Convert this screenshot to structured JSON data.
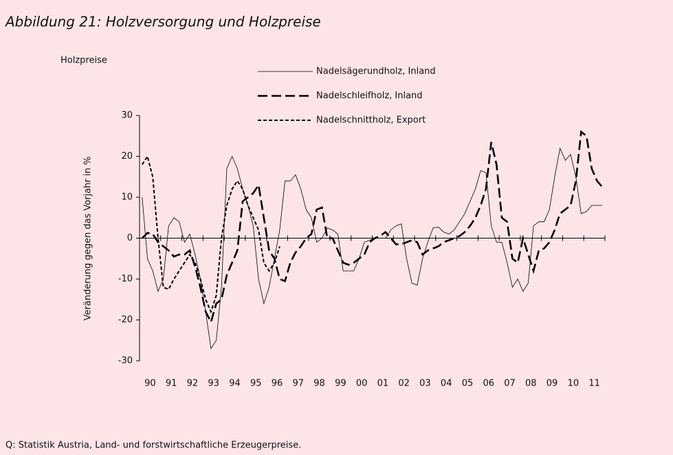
{
  "chart_data": {
    "type": "line",
    "title": "Abbildung 21: Holzversorgung und Holzpreise",
    "subtitle": "Holzpreise",
    "y_label": "Veränderung gegen das Vorjahr in %",
    "source": "Q: Statistik Austria, Land- und forstwirtschaftliche Erzeugerpreise.",
    "categories": [
      null,
      null,
      "90",
      null,
      null,
      null,
      "91",
      null,
      null,
      null,
      "92",
      null,
      null,
      null,
      "93",
      null,
      null,
      null,
      "94",
      null,
      null,
      null,
      "95",
      null,
      null,
      null,
      "96",
      null,
      null,
      null,
      "97",
      null,
      null,
      null,
      "98",
      null,
      null,
      null,
      "99",
      null,
      null,
      null,
      "00",
      null,
      null,
      null,
      "01",
      null,
      null,
      null,
      "02",
      null,
      null,
      null,
      "03",
      null,
      null,
      null,
      "04",
      null,
      null,
      null,
      "05",
      null,
      null,
      null,
      "06",
      null,
      null,
      null,
      "07",
      null,
      null,
      null,
      "08",
      null,
      null,
      null,
      "09",
      null,
      null,
      null,
      "10",
      null,
      null,
      null,
      "11",
      null
    ],
    "series": [
      {
        "name": "Nadelsägerundholz, Inland",
        "color": "#000000",
        "linestyle": "solid",
        "values": [
          10,
          -5,
          -8,
          -13,
          -10,
          3,
          5,
          4,
          -1,
          1,
          -4,
          -10,
          -18,
          -27,
          -25,
          -12,
          17,
          20,
          17,
          12,
          8,
          3,
          -10,
          -16,
          -12,
          -5,
          2,
          14,
          14,
          15.5,
          12,
          7,
          5,
          -1,
          0,
          2.5,
          2,
          1,
          -8,
          -8,
          -8,
          -5,
          -1,
          -0.5,
          0,
          0,
          0,
          2,
          3,
          3.5,
          -5,
          -11,
          -11.5,
          -5,
          -1,
          2.5,
          2.7,
          1.5,
          1,
          2,
          4,
          6,
          9,
          12,
          16.5,
          16,
          3,
          -1,
          -1,
          -6,
          -12,
          -10,
          -13,
          -11,
          3,
          4,
          4,
          7,
          15,
          22,
          19,
          20.5,
          15,
          6,
          6.5,
          8,
          8,
          8
        ]
      },
      {
        "name": "Nadelschleifholz, Inland",
        "color": "#000000",
        "linestyle": "long-dash",
        "values": [
          0,
          1.3,
          1,
          -1,
          -2,
          -3,
          -4.5,
          -4,
          -4,
          -3,
          -7,
          -12,
          -18,
          -20.5,
          -16,
          -15,
          -9,
          -6,
          -3,
          9,
          10,
          11,
          13,
          5,
          -3,
          -5,
          -10,
          -10.5,
          -6,
          -3.5,
          -2,
          0,
          1,
          7,
          7.5,
          0,
          0,
          -3,
          -6,
          -6.5,
          -6,
          -5,
          -4,
          -1,
          0,
          0.5,
          1.5,
          0,
          -1.5,
          -1.5,
          -1,
          -0.5,
          -1,
          -4,
          -3,
          -2.5,
          -2,
          -1,
          -0.5,
          0,
          0.5,
          1.5,
          3,
          5,
          8,
          12,
          23.5,
          18,
          5,
          4,
          -5,
          -6,
          0,
          -4,
          -8,
          -3,
          -2.5,
          -1,
          2,
          6,
          7,
          8,
          14,
          26,
          25,
          17,
          14,
          12.5
        ]
      },
      {
        "name": "Nadelschnittholz, Export",
        "color": "#000000",
        "linestyle": "short-dash",
        "values": [
          18,
          20,
          15,
          0,
          -12,
          -12.5,
          -10,
          -8,
          -6,
          -4,
          -6,
          -10,
          -15,
          -18,
          -14,
          0,
          8,
          12,
          14,
          12,
          8,
          5,
          2,
          -6,
          -8,
          -6,
          -2,
          null,
          null,
          null,
          null,
          null,
          null,
          null,
          null,
          null,
          null,
          null,
          null,
          null,
          null,
          null,
          null,
          null,
          null,
          null,
          null,
          null,
          null,
          null,
          null,
          null,
          null,
          null,
          null,
          null,
          null,
          null,
          null,
          null,
          null,
          null,
          null,
          null,
          null,
          null,
          null,
          null,
          null,
          null,
          null,
          null,
          null,
          null,
          null,
          null,
          null,
          null,
          null,
          null,
          null,
          null,
          null,
          null,
          null,
          null,
          null,
          null
        ]
      }
    ],
    "ylim": [
      -30,
      30
    ],
    "yticks": [
      -30,
      -20,
      -10,
      0,
      10,
      20,
      30
    ]
  }
}
